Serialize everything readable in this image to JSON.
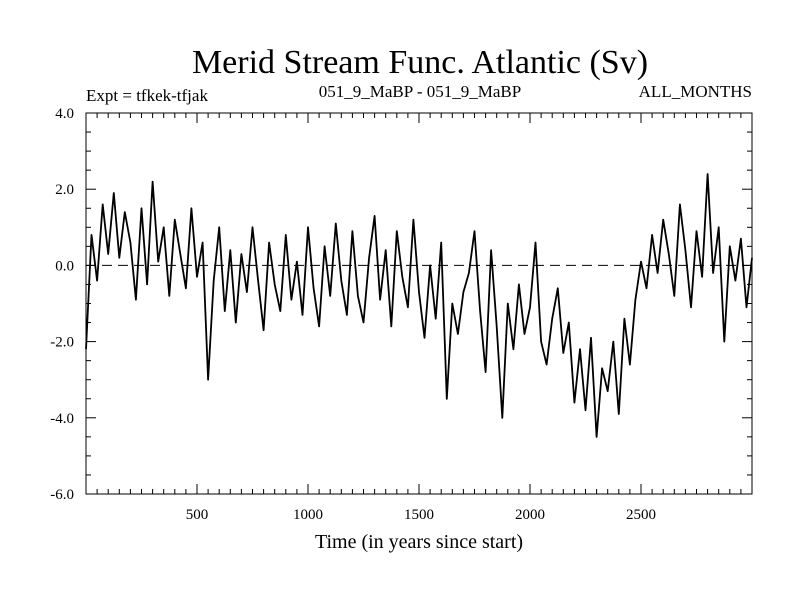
{
  "chart_data": {
    "type": "line",
    "title": "Merid Stream Func. Atlantic (Sv)",
    "annotations": {
      "left": "Expt = tfkek-tfjak",
      "center": "051_9_MaBP - 051_9_MaBP",
      "right": "ALL_MONTHS"
    },
    "xlabel": "Time (in years since start)",
    "ylabel": "",
    "xlim": [
      0,
      3000
    ],
    "ylim": [
      -6.0,
      4.0
    ],
    "x_ticks": [
      500,
      1000,
      1500,
      2000,
      2500
    ],
    "x_tick_labels": [
      "500",
      "1000",
      "1500",
      "2000",
      "2500"
    ],
    "y_ticks": [
      4.0,
      2.0,
      0.0,
      -2.0,
      -4.0,
      -6.0
    ],
    "y_tick_labels": [
      "4.0",
      "2.0",
      "0.0",
      "-2.0",
      "-4.0",
      "-6.0"
    ],
    "zero_line": "dashed",
    "grid": false,
    "series": [
      {
        "color": "#000000",
        "x": [
          0,
          25,
          50,
          75,
          100,
          125,
          150,
          175,
          200,
          225,
          250,
          275,
          300,
          325,
          350,
          375,
          400,
          425,
          450,
          475,
          500,
          525,
          550,
          575,
          600,
          625,
          650,
          675,
          700,
          725,
          750,
          775,
          800,
          825,
          850,
          875,
          900,
          925,
          950,
          975,
          1000,
          1025,
          1050,
          1075,
          1100,
          1125,
          1150,
          1175,
          1200,
          1225,
          1250,
          1275,
          1300,
          1325,
          1350,
          1375,
          1400,
          1425,
          1450,
          1475,
          1500,
          1525,
          1550,
          1575,
          1600,
          1625,
          1650,
          1675,
          1700,
          1725,
          1750,
          1775,
          1800,
          1825,
          1850,
          1875,
          1900,
          1925,
          1950,
          1975,
          2000,
          2025,
          2050,
          2075,
          2100,
          2125,
          2150,
          2175,
          2200,
          2225,
          2250,
          2275,
          2300,
          2325,
          2350,
          2375,
          2400,
          2425,
          2450,
          2475,
          2500,
          2525,
          2550,
          2575,
          2600,
          2625,
          2650,
          2675,
          2700,
          2725,
          2750,
          2775,
          2800,
          2825,
          2850,
          2875,
          2900,
          2925,
          2950,
          2975,
          3000
        ],
        "y": [
          -2.2,
          0.8,
          -0.4,
          1.6,
          0.3,
          1.9,
          0.2,
          1.4,
          0.6,
          -0.9,
          1.5,
          -0.5,
          2.2,
          0.1,
          1.0,
          -0.8,
          1.2,
          0.3,
          -0.6,
          1.5,
          -0.3,
          0.6,
          -3.0,
          -0.4,
          1.0,
          -1.2,
          0.4,
          -1.5,
          0.3,
          -0.7,
          1.0,
          -0.4,
          -1.7,
          0.6,
          -0.5,
          -1.2,
          0.8,
          -0.9,
          0.1,
          -1.3,
          1.0,
          -0.6,
          -1.6,
          0.5,
          -0.8,
          1.1,
          -0.4,
          -1.3,
          0.9,
          -0.8,
          -1.5,
          0.2,
          1.3,
          -0.9,
          0.4,
          -1.6,
          0.9,
          -0.3,
          -1.1,
          1.2,
          -0.7,
          -1.9,
          0.0,
          -1.4,
          0.6,
          -3.5,
          -1.0,
          -1.8,
          -0.7,
          -0.2,
          0.9,
          -1.2,
          -2.8,
          0.4,
          -1.6,
          -4.0,
          -1.0,
          -2.2,
          -0.5,
          -1.8,
          -1.1,
          0.6,
          -2.0,
          -2.6,
          -1.4,
          -0.6,
          -2.3,
          -1.5,
          -3.6,
          -2.2,
          -3.8,
          -1.9,
          -4.5,
          -2.7,
          -3.3,
          -2.0,
          -3.9,
          -1.4,
          -2.6,
          -0.9,
          0.1,
          -0.6,
          0.8,
          -0.2,
          1.2,
          0.3,
          -0.8,
          1.6,
          0.4,
          -1.1,
          0.9,
          -0.3,
          2.4,
          -0.2,
          1.0,
          -2.0,
          0.5,
          -0.4,
          0.7,
          -1.1,
          0.2
        ]
      }
    ]
  }
}
